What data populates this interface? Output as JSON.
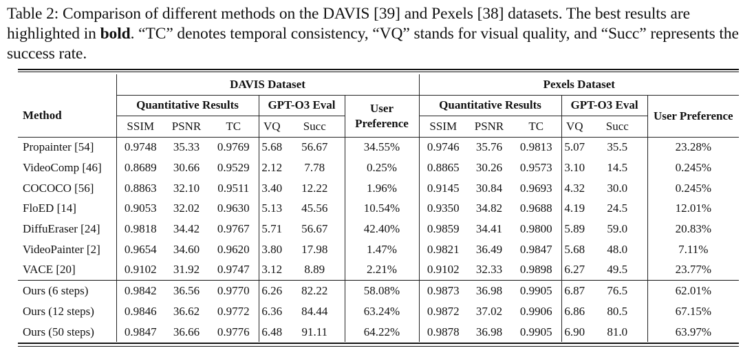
{
  "caption": {
    "part1": "Table 2: Comparison of different methods on the DAVIS [39] and Pexels [38] datasets. The best results are highlighted in ",
    "bold_word": "bold",
    "part2": ". “TC” denotes temporal consistency, “VQ” stands for visual quality, and “Succ” represents the success rate."
  },
  "header": {
    "method": "Method",
    "davis": "DAVIS Dataset",
    "pexels": "Pexels Dataset",
    "quant": "Quantitative Results",
    "gpt": "GPT-O3 Eval",
    "user": "User Preference",
    "ssim": "SSIM",
    "psnr": "PSNR",
    "tc": "TC",
    "vq": "VQ",
    "succ": "Succ"
  },
  "rows": [
    {
      "method": "Propainter [54]",
      "davis": [
        "0.9748",
        "35.33",
        "0.9769",
        "5.68",
        "56.67",
        "34.55%"
      ],
      "pexels": [
        "0.9746",
        "35.76",
        "0.9813",
        "5.07",
        "35.5",
        "23.28%"
      ]
    },
    {
      "method": "VideoComp [46]",
      "davis": [
        "0.8689",
        "30.66",
        "0.9529",
        "2.12",
        "7.78",
        "0.25%"
      ],
      "pexels": [
        "0.8865",
        "30.26",
        "0.9573",
        "3.10",
        "14.5",
        "0.245%"
      ]
    },
    {
      "method": "COCOCO [56]",
      "davis": [
        "0.8863",
        "32.10",
        "0.9511",
        "3.40",
        "12.22",
        "1.96%"
      ],
      "pexels": [
        "0.9145",
        "30.84",
        "0.9693",
        "4.32",
        "30.0",
        "0.245%"
      ]
    },
    {
      "method": "FloED [14]",
      "davis": [
        "0.9053",
        "32.02",
        "0.9630",
        "5.13",
        "45.56",
        "10.54%"
      ],
      "pexels": [
        "0.9350",
        "34.82",
        "0.9688",
        "4.19",
        "24.5",
        "12.01%"
      ]
    },
    {
      "method": "DiffuEraser [24]",
      "davis": [
        "0.9818",
        "34.42",
        "0.9767",
        "5.71",
        "56.67",
        "42.40%"
      ],
      "pexels": [
        "0.9859",
        "34.41",
        "0.9800",
        "5.89",
        "59.0",
        "20.83%"
      ]
    },
    {
      "method": "VideoPainter [2]",
      "davis": [
        "0.9654",
        "34.60",
        "0.9620",
        "3.80",
        "17.98",
        "1.47%"
      ],
      "pexels": [
        "0.9821",
        "36.49",
        "0.9847",
        "5.68",
        "48.0",
        "7.11%"
      ]
    },
    {
      "method": "VACE [20]",
      "davis": [
        "0.9102",
        "31.92",
        "0.9747",
        "3.12",
        "8.89",
        "2.21%"
      ],
      "pexels": [
        "0.9102",
        "32.33",
        "0.9898",
        "6.27",
        "49.5",
        "23.77%"
      ]
    }
  ],
  "ours": [
    {
      "method": "Ours (6 steps)",
      "davis": [
        "0.9842",
        "36.56",
        "0.9770",
        "6.26",
        "82.22",
        "58.08%"
      ],
      "pexels": [
        "0.9873",
        "36.98",
        "0.9905",
        "6.87",
        "76.5",
        "62.01%"
      ]
    },
    {
      "method": "Ours (12 steps)",
      "davis": [
        "0.9846",
        "36.62",
        "0.9772",
        "6.36",
        "84.44",
        "63.24%"
      ],
      "pexels": [
        "0.9872",
        "37.02",
        "0.9906",
        "6.86",
        "80.5",
        "67.15%"
      ]
    },
    {
      "method": "Ours (50 steps)",
      "davis": [
        "0.9847",
        "36.66",
        "0.9776",
        "6.48",
        "91.11",
        "64.22%"
      ],
      "pexels": [
        "0.9878",
        "36.98",
        "0.9905",
        "6.90",
        "81.0",
        "63.97%"
      ]
    }
  ]
}
